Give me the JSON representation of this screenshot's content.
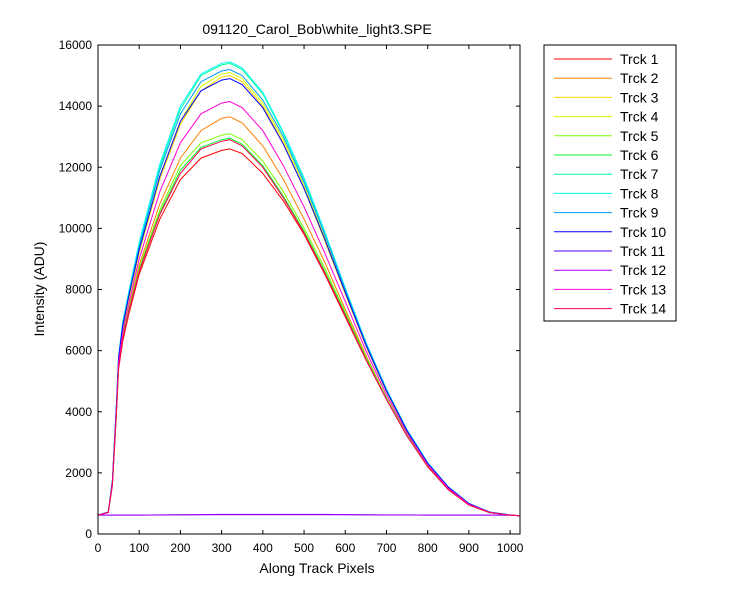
{
  "chart_data": {
    "type": "line",
    "title": "091120_Carol_Bob\\white_light3.SPE",
    "xlabel": "Along Track Pixels",
    "ylabel": "Intensity (ADU)",
    "xlim": [
      0,
      1024
    ],
    "ylim": [
      0,
      16000
    ],
    "x_ticks": [
      0,
      100,
      200,
      300,
      400,
      500,
      600,
      700,
      800,
      900,
      1000
    ],
    "y_ticks": [
      0,
      2000,
      4000,
      6000,
      8000,
      10000,
      12000,
      14000,
      16000
    ],
    "grid": false,
    "legend_position": "outside-right",
    "x": [
      0,
      25,
      35,
      45,
      50,
      60,
      75,
      100,
      150,
      200,
      250,
      300,
      320,
      350,
      400,
      450,
      500,
      550,
      600,
      650,
      700,
      750,
      800,
      850,
      900,
      950,
      1000,
      1024
    ],
    "series": [
      {
        "name": "Trck 1",
        "color": "#ff0000",
        "values": [
          620,
          700,
          1600,
          4000,
          5400,
          6300,
          7200,
          8500,
          10300,
          11600,
          12300,
          12550,
          12600,
          12450,
          11800,
          10900,
          9800,
          8500,
          7100,
          5700,
          4400,
          3200,
          2200,
          1450,
          950,
          700,
          620,
          600
        ]
      },
      {
        "name": "Trck 2",
        "color": "#ff7f00",
        "values": [
          620,
          710,
          1650,
          4100,
          5550,
          6500,
          7400,
          8800,
          10800,
          12300,
          13200,
          13600,
          13650,
          13450,
          12700,
          11600,
          10300,
          8900,
          7350,
          5850,
          4450,
          3250,
          2250,
          1500,
          980,
          710,
          620,
          600
        ]
      },
      {
        "name": "Trck 3",
        "color": "#ffd400",
        "values": [
          620,
          715,
          1700,
          4200,
          5700,
          6700,
          7700,
          9200,
          11600,
          13400,
          14500,
          14950,
          15000,
          14800,
          14000,
          12800,
          11300,
          9600,
          7850,
          6150,
          4650,
          3350,
          2300,
          1520,
          990,
          715,
          620,
          600
        ]
      },
      {
        "name": "Trck 4",
        "color": "#d4ff00",
        "values": [
          620,
          715,
          1720,
          4220,
          5720,
          6750,
          7750,
          9250,
          11700,
          13500,
          14650,
          15050,
          15100,
          14900,
          14100,
          12900,
          11400,
          9700,
          7900,
          6200,
          4680,
          3370,
          2310,
          1530,
          995,
          715,
          620,
          600
        ]
      },
      {
        "name": "Trck 5",
        "color": "#7fff00",
        "values": [
          620,
          705,
          1620,
          4050,
          5500,
          6450,
          7350,
          8700,
          10600,
          12050,
          12800,
          13050,
          13100,
          12900,
          12200,
          11200,
          10000,
          8700,
          7250,
          5800,
          4450,
          3230,
          2230,
          1470,
          960,
          705,
          620,
          600
        ]
      },
      {
        "name": "Trck 6",
        "color": "#00ff2a",
        "values": [
          620,
          705,
          1610,
          4030,
          5480,
          6400,
          7300,
          8650,
          10500,
          11900,
          12650,
          12900,
          12950,
          12750,
          12050,
          11050,
          9900,
          8600,
          7200,
          5750,
          4420,
          3210,
          2220,
          1460,
          955,
          700,
          620,
          600
        ]
      },
      {
        "name": "Trck 7",
        "color": "#00ff99",
        "values": [
          620,
          720,
          1750,
          4300,
          5800,
          6900,
          7900,
          9500,
          12000,
          13900,
          15000,
          15350,
          15400,
          15200,
          14400,
          13100,
          11600,
          9850,
          8000,
          6250,
          4720,
          3400,
          2330,
          1540,
          1000,
          720,
          620,
          600
        ]
      },
      {
        "name": "Trck 8",
        "color": "#00ffff",
        "values": [
          620,
          720,
          1760,
          4320,
          5820,
          6950,
          7950,
          9550,
          12100,
          14000,
          15050,
          15400,
          15450,
          15250,
          14450,
          13150,
          11650,
          9900,
          8050,
          6280,
          4740,
          3410,
          2340,
          1545,
          1000,
          720,
          620,
          600
        ]
      },
      {
        "name": "Trck 9",
        "color": "#0099ff",
        "values": [
          620,
          718,
          1740,
          4280,
          5780,
          6850,
          7850,
          9400,
          11900,
          13750,
          14800,
          15150,
          15200,
          15000,
          14200,
          13000,
          11500,
          9800,
          7980,
          6240,
          4710,
          3390,
          2320,
          1535,
          998,
          718,
          620,
          600
        ]
      },
      {
        "name": "Trck 10",
        "color": "#0000ff",
        "values": [
          620,
          716,
          1720,
          4250,
          5750,
          6800,
          7800,
          9300,
          11700,
          13500,
          14500,
          14850,
          14900,
          14700,
          13950,
          12750,
          11300,
          9650,
          7900,
          6180,
          4680,
          3370,
          2310,
          1530,
          995,
          716,
          620,
          600
        ]
      },
      {
        "name": "Trck 11",
        "color": "#5500ff",
        "values": [
          620,
          620,
          620,
          620,
          620,
          620,
          620,
          620,
          625,
          630,
          635,
          640,
          640,
          640,
          640,
          640,
          640,
          640,
          635,
          630,
          625,
          625,
          620,
          620,
          620,
          620,
          620,
          600
        ]
      },
      {
        "name": "Trck 12",
        "color": "#aa00ff",
        "values": [
          620,
          620,
          620,
          620,
          620,
          620,
          620,
          620,
          622,
          625,
          628,
          630,
          630,
          630,
          630,
          630,
          630,
          630,
          628,
          625,
          622,
          622,
          620,
          620,
          620,
          620,
          620,
          600
        ]
      },
      {
        "name": "Trck 13",
        "color": "#ff00d4",
        "values": [
          620,
          712,
          1680,
          4150,
          5600,
          6600,
          7550,
          9000,
          11200,
          12800,
          13750,
          14100,
          14150,
          13950,
          13200,
          12050,
          10700,
          9200,
          7600,
          6000,
          4550,
          3300,
          2270,
          1500,
          975,
          712,
          620,
          600
        ]
      },
      {
        "name": "Trck 14",
        "color": "#ff0055",
        "values": [
          620,
          702,
          1600,
          4020,
          5450,
          6380,
          7280,
          8600,
          10450,
          11800,
          12600,
          12850,
          12900,
          12700,
          12000,
          11000,
          9850,
          8550,
          7150,
          5720,
          4400,
          3200,
          2210,
          1455,
          950,
          700,
          620,
          600
        ]
      }
    ]
  }
}
